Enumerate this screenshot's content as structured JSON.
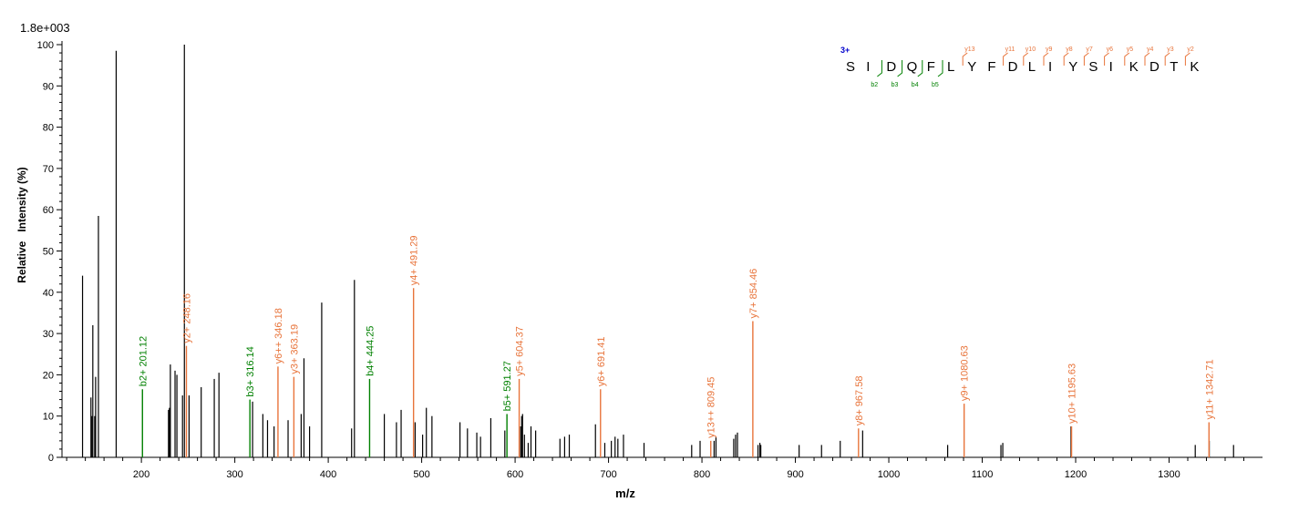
{
  "header": {
    "scale_label": "1.8e+003"
  },
  "chart_data": {
    "type": "bar",
    "title": "",
    "xlabel": "m/z",
    "ylabel": "Relative   Intensity (%)",
    "xlim": [
      115,
      1400
    ],
    "ylim": [
      0,
      100
    ],
    "x_ticks": [
      200,
      300,
      400,
      500,
      600,
      700,
      800,
      900,
      1000,
      1100,
      1200,
      1300
    ],
    "y_ticks": [
      0,
      10,
      20,
      30,
      40,
      50,
      60,
      70,
      80,
      90,
      100
    ],
    "grid": false,
    "colors": {
      "unassigned": "#000000",
      "b_ion": "#008000",
      "y_ion": "#E8743B",
      "charge": "#0000CC"
    },
    "peaks": [
      [
        137,
        44
      ],
      [
        146,
        14.5
      ],
      [
        147,
        10
      ],
      [
        148,
        32
      ],
      [
        150,
        10
      ],
      [
        151,
        19.5
      ],
      [
        154,
        58.5
      ],
      [
        173,
        98.5
      ],
      [
        229,
        11.5
      ],
      [
        230,
        12
      ],
      [
        231,
        22.5
      ],
      [
        236,
        21
      ],
      [
        238,
        20
      ],
      [
        244,
        15
      ],
      [
        246,
        100
      ],
      [
        251,
        15
      ],
      [
        264,
        17
      ],
      [
        278,
        19
      ],
      [
        283,
        20.5
      ],
      [
        319,
        13.5
      ],
      [
        330,
        10.5
      ],
      [
        335,
        9
      ],
      [
        342,
        7.5
      ],
      [
        357,
        9
      ],
      [
        371,
        10.5
      ],
      [
        374,
        24
      ],
      [
        380,
        7.5
      ],
      [
        393,
        37.5
      ],
      [
        425,
        7
      ],
      [
        428,
        43
      ],
      [
        460,
        10.5
      ],
      [
        473,
        8.5
      ],
      [
        478,
        11.5
      ],
      [
        493,
        8.5
      ],
      [
        501,
        5.5
      ],
      [
        505,
        12
      ],
      [
        511,
        10
      ],
      [
        541,
        8.5
      ],
      [
        549,
        7
      ],
      [
        559,
        6
      ],
      [
        563,
        5
      ],
      [
        574,
        9.5
      ],
      [
        589,
        6.5
      ],
      [
        606,
        7.5
      ],
      [
        607,
        10
      ],
      [
        608,
        10.5
      ],
      [
        610,
        5.5
      ],
      [
        614,
        3.5
      ],
      [
        617,
        7.5
      ],
      [
        622,
        6.5
      ],
      [
        648,
        4.5
      ],
      [
        653,
        5
      ],
      [
        658,
        5.5
      ],
      [
        686,
        8
      ],
      [
        696,
        3.5
      ],
      [
        703,
        4
      ],
      [
        707,
        5
      ],
      [
        710,
        4.5
      ],
      [
        716,
        5.5
      ],
      [
        738,
        3.5
      ],
      [
        789,
        3
      ],
      [
        798,
        4
      ],
      [
        813,
        4
      ],
      [
        815,
        5
      ],
      [
        834,
        4.5
      ],
      [
        836,
        5.5
      ],
      [
        838,
        6
      ],
      [
        860,
        3
      ],
      [
        862,
        3.5
      ],
      [
        863,
        3
      ],
      [
        904,
        3
      ],
      [
        928,
        3
      ],
      [
        948,
        4
      ],
      [
        972,
        6.5
      ],
      [
        1063,
        3
      ],
      [
        1120,
        3
      ],
      [
        1122,
        3.5
      ],
      [
        1195,
        7.5
      ],
      [
        1328,
        3
      ],
      [
        1343,
        4
      ],
      [
        1369,
        3
      ]
    ],
    "annotations": [
      {
        "mz": 201.12,
        "intensity": 16.5,
        "ion": "b",
        "label": "b2+ 201.12"
      },
      {
        "mz": 248.16,
        "intensity": 27,
        "ion": "y",
        "label": "y2+ 248.16"
      },
      {
        "mz": 316.14,
        "intensity": 14,
        "ion": "b",
        "label": "b3+ 316.14"
      },
      {
        "mz": 346.18,
        "intensity": 22,
        "ion": "y",
        "label": "y6++ 346.18"
      },
      {
        "mz": 363.19,
        "intensity": 19.5,
        "ion": "y",
        "label": "y3+ 363.19"
      },
      {
        "mz": 444.25,
        "intensity": 19,
        "ion": "b",
        "label": "b4+ 444.25"
      },
      {
        "mz": 491.29,
        "intensity": 41,
        "ion": "y",
        "label": "y4+ 491.29"
      },
      {
        "mz": 591.27,
        "intensity": 10.5,
        "ion": "b",
        "label": "b5+ 591.27"
      },
      {
        "mz": 604.37,
        "intensity": 19,
        "ion": "y",
        "label": "y5+ 604.37"
      },
      {
        "mz": 691.41,
        "intensity": 16.5,
        "ion": "y",
        "label": "y6+ 691.41"
      },
      {
        "mz": 809.45,
        "intensity": 4,
        "ion": "y",
        "label": "y13++ 809.45"
      },
      {
        "mz": 854.46,
        "intensity": 33,
        "ion": "y",
        "label": "y7+ 854.46"
      },
      {
        "mz": 967.58,
        "intensity": 7,
        "ion": "y",
        "label": "y8+ 967.58"
      },
      {
        "mz": 1080.63,
        "intensity": 13,
        "ion": "y",
        "label": "y9+ 1080.63"
      },
      {
        "mz": 1195.63,
        "intensity": 7.5,
        "ion": "y",
        "label": "y10+ 1195.63"
      },
      {
        "mz": 1342.71,
        "intensity": 8.5,
        "ion": "y",
        "label": "y11+ 1342.71"
      }
    ]
  },
  "peptide": {
    "charge": "3+",
    "sequence": [
      "S",
      "I",
      "D",
      "Q",
      "F",
      "L",
      "Y",
      "F",
      "D",
      "L",
      "I",
      "Y",
      "S",
      "I",
      "K",
      "D",
      "T",
      "K"
    ],
    "y_labels": [
      "y13",
      "y11",
      "y10",
      "y9",
      "y8",
      "y7",
      "y6",
      "y5",
      "y4",
      "y3",
      "y2"
    ],
    "y_after_index": [
      5,
      7,
      8,
      9,
      10,
      11,
      12,
      13,
      14,
      15,
      16
    ],
    "b_labels": [
      "b2",
      "b3",
      "b4",
      "b5"
    ],
    "b_after_index": [
      1,
      2,
      3,
      4
    ]
  }
}
